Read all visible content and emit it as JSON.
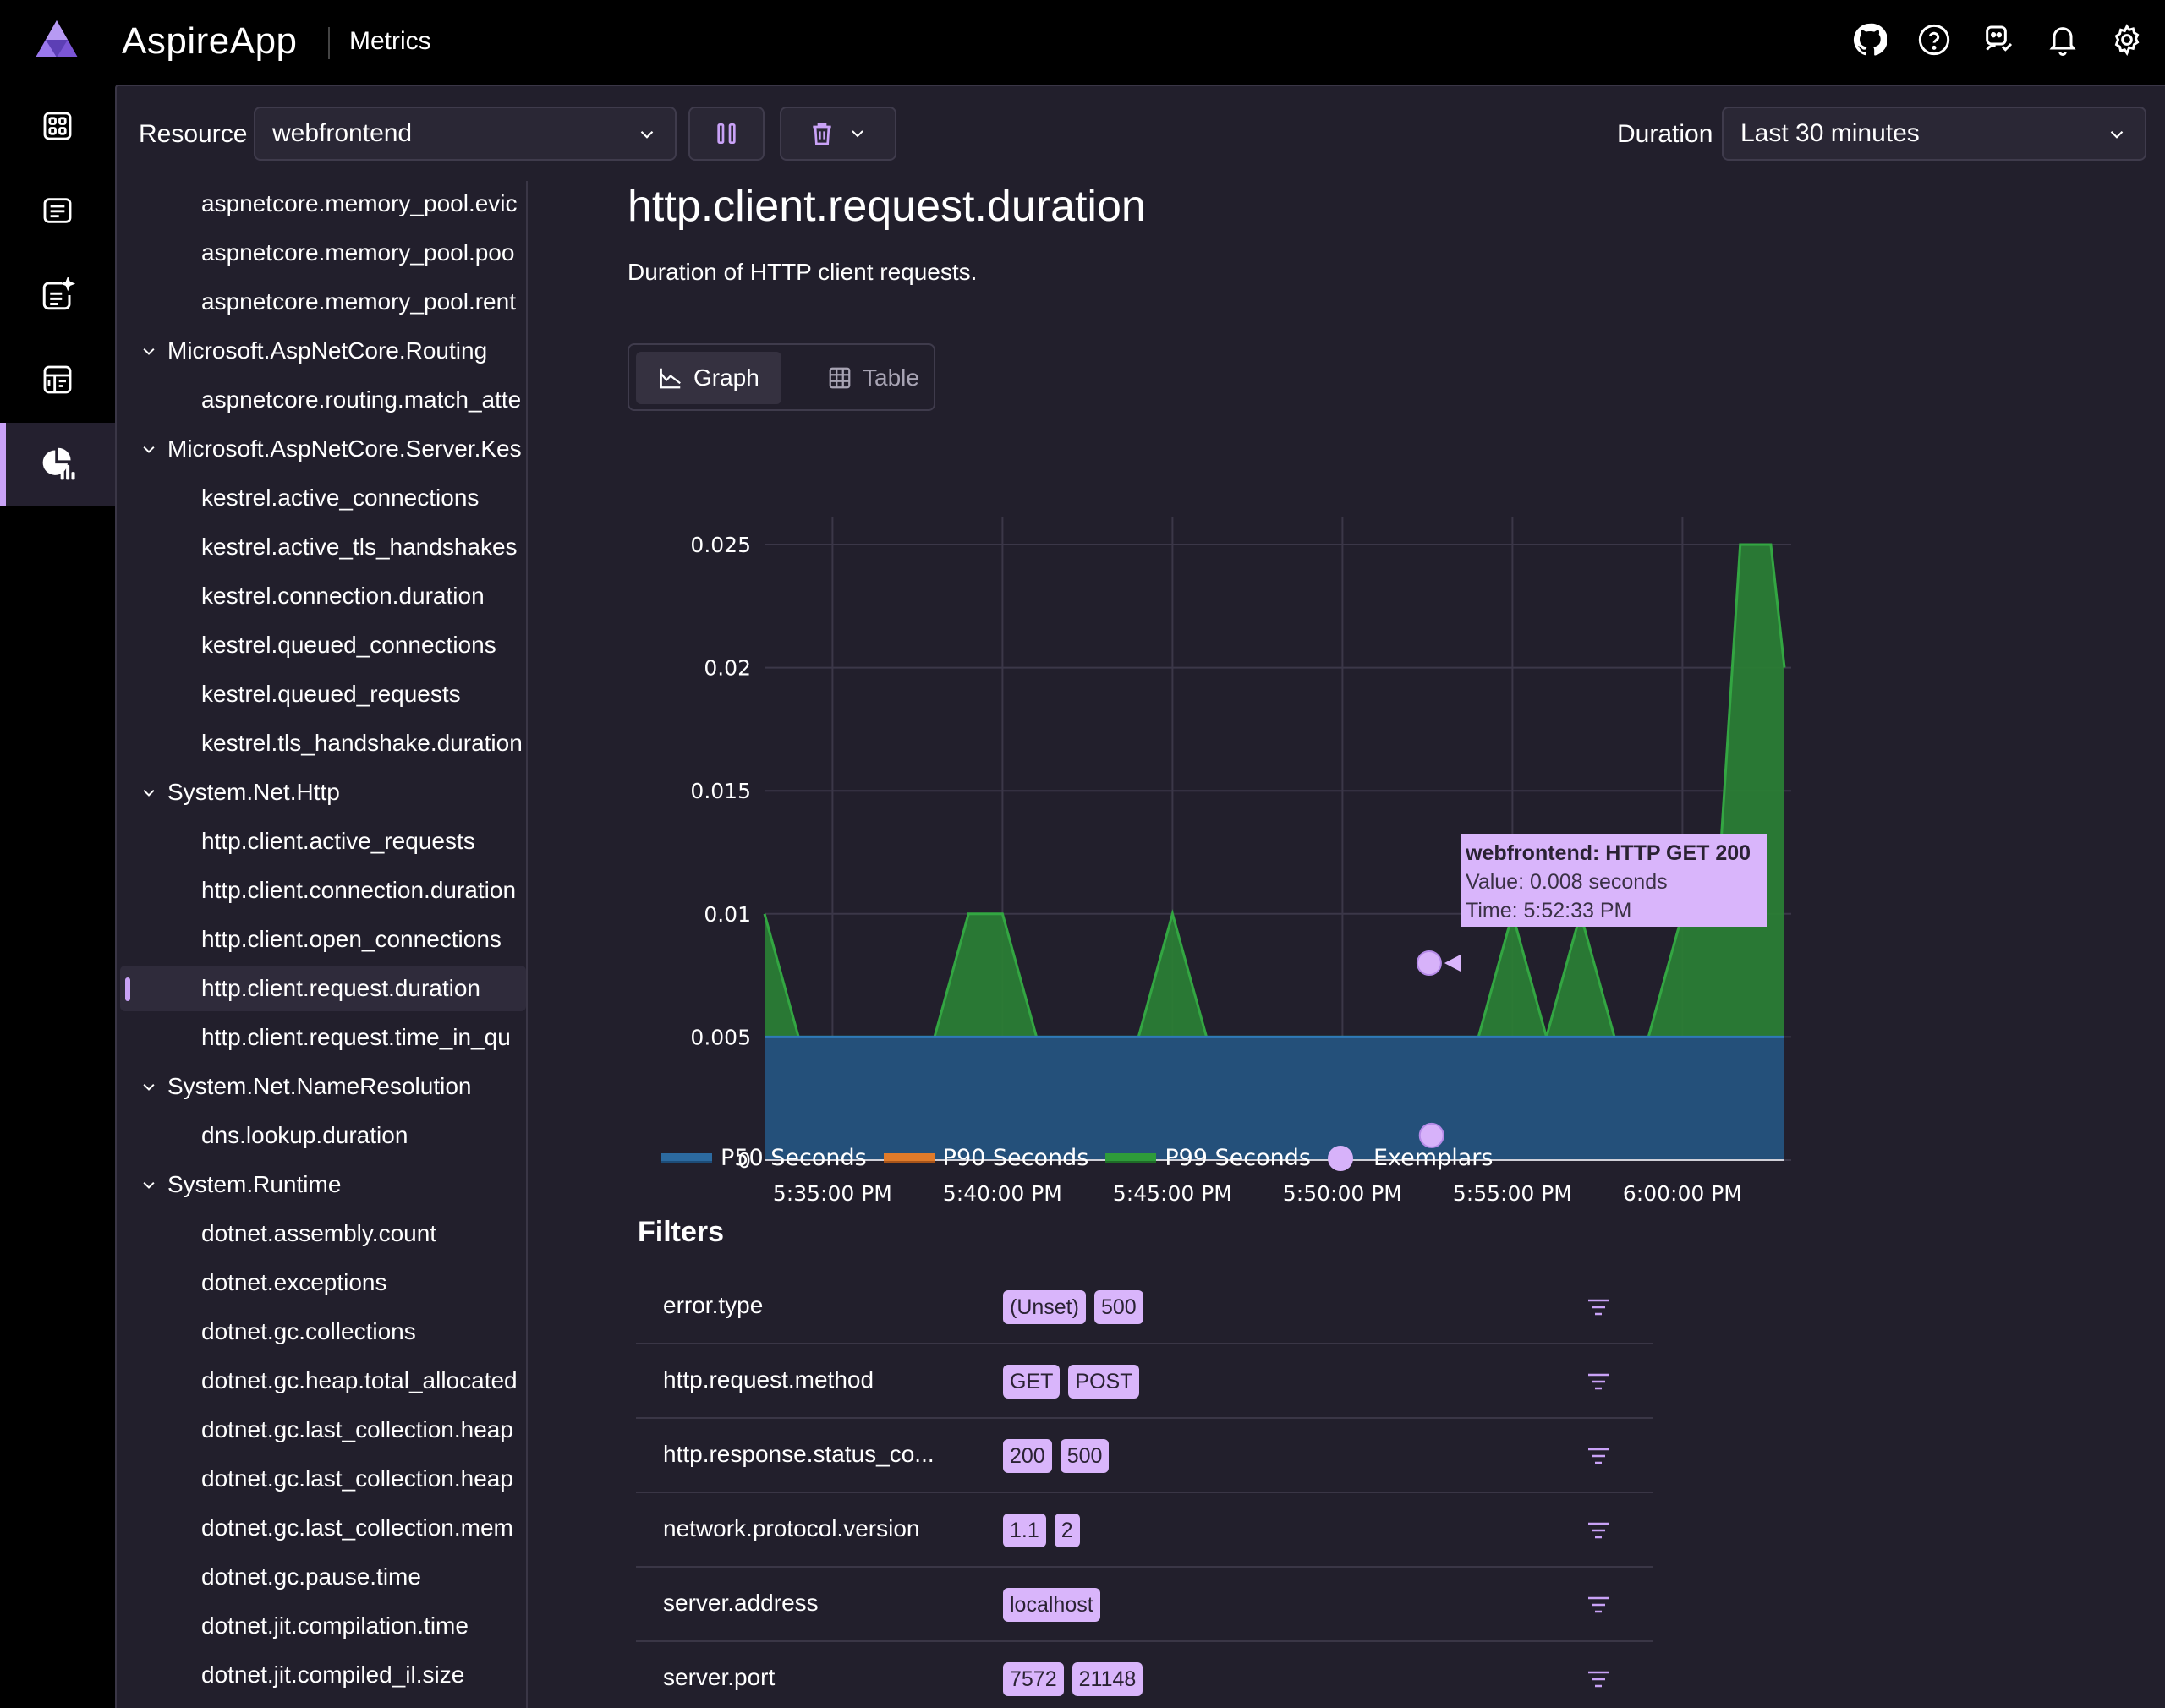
{
  "header": {
    "app_title": "AspireApp",
    "page_name": "Metrics",
    "icons": [
      "github-icon",
      "help-icon",
      "support-icon",
      "notifications-icon",
      "settings-icon"
    ]
  },
  "nav": {
    "items": [
      {
        "name": "resources",
        "icon": "resources-icon"
      },
      {
        "name": "console-logs",
        "icon": "console-logs-icon"
      },
      {
        "name": "structured-logs",
        "icon": "structured-logs-icon"
      },
      {
        "name": "traces",
        "icon": "traces-icon"
      },
      {
        "name": "metrics",
        "icon": "metrics-icon",
        "active": true
      }
    ]
  },
  "toolbar": {
    "resource_label": "Resource",
    "resource_value": "webfrontend",
    "duration_label": "Duration",
    "duration_value": "Last 30 minutes"
  },
  "tree": {
    "rows": [
      {
        "type": "leaf",
        "label": "aspnetcore.memory_pool.evic"
      },
      {
        "type": "leaf",
        "label": "aspnetcore.memory_pool.poo"
      },
      {
        "type": "leaf",
        "label": "aspnetcore.memory_pool.rent"
      },
      {
        "type": "group",
        "label": "Microsoft.AspNetCore.Routing"
      },
      {
        "type": "leaf",
        "label": "aspnetcore.routing.match_atte"
      },
      {
        "type": "group",
        "label": "Microsoft.AspNetCore.Server.Kes"
      },
      {
        "type": "leaf",
        "label": "kestrel.active_connections"
      },
      {
        "type": "leaf",
        "label": "kestrel.active_tls_handshakes"
      },
      {
        "type": "leaf",
        "label": "kestrel.connection.duration"
      },
      {
        "type": "leaf",
        "label": "kestrel.queued_connections"
      },
      {
        "type": "leaf",
        "label": "kestrel.queued_requests"
      },
      {
        "type": "leaf",
        "label": "kestrel.tls_handshake.duration"
      },
      {
        "type": "group",
        "label": "System.Net.Http"
      },
      {
        "type": "leaf",
        "label": "http.client.active_requests"
      },
      {
        "type": "leaf",
        "label": "http.client.connection.duration"
      },
      {
        "type": "leaf",
        "label": "http.client.open_connections"
      },
      {
        "type": "leaf",
        "label": "http.client.request.duration",
        "selected": true
      },
      {
        "type": "leaf",
        "label": "http.client.request.time_in_qu"
      },
      {
        "type": "group",
        "label": "System.Net.NameResolution"
      },
      {
        "type": "leaf",
        "label": "dns.lookup.duration"
      },
      {
        "type": "group",
        "label": "System.Runtime"
      },
      {
        "type": "leaf",
        "label": "dotnet.assembly.count"
      },
      {
        "type": "leaf",
        "label": "dotnet.exceptions"
      },
      {
        "type": "leaf",
        "label": "dotnet.gc.collections"
      },
      {
        "type": "leaf",
        "label": "dotnet.gc.heap.total_allocated"
      },
      {
        "type": "leaf",
        "label": "dotnet.gc.last_collection.heap"
      },
      {
        "type": "leaf",
        "label": "dotnet.gc.last_collection.heap"
      },
      {
        "type": "leaf",
        "label": "dotnet.gc.last_collection.mem"
      },
      {
        "type": "leaf",
        "label": "dotnet.gc.pause.time"
      },
      {
        "type": "leaf",
        "label": "dotnet.jit.compilation.time"
      },
      {
        "type": "leaf",
        "label": "dotnet.jit.compiled_il.size"
      }
    ]
  },
  "content": {
    "title": "http.client.request.duration",
    "description": "Duration of HTTP client requests.",
    "view_graph": "Graph",
    "view_table": "Table"
  },
  "chart_data": {
    "type": "area",
    "x": [
      "5:35:00 PM",
      "5:40:00 PM",
      "5:45:00 PM",
      "5:50:00 PM",
      "5:55:00 PM",
      "6:00:00 PM"
    ],
    "ylim": [
      0,
      0.025
    ],
    "yticks": [
      "0",
      "0.005",
      "0.01",
      "0.015",
      "0.02",
      "0.025"
    ],
    "grid": true,
    "series": [
      {
        "name": "P50 Seconds",
        "color": "#2c6aa0",
        "points": [
          [
            0,
            0.005
          ],
          [
            30,
            0.005
          ]
        ]
      },
      {
        "name": "P90 Seconds",
        "color": "#e07b2a",
        "points": [
          [
            0,
            0.005
          ],
          [
            30,
            0.005
          ]
        ]
      },
      {
        "name": "P99 Seconds",
        "color": "#2e9b3a",
        "points": [
          [
            0,
            0.01
          ],
          [
            1,
            0.005
          ],
          [
            5,
            0.005
          ],
          [
            6,
            0.01
          ],
          [
            7,
            0.01
          ],
          [
            8,
            0.005
          ],
          [
            11,
            0.005
          ],
          [
            12,
            0.01
          ],
          [
            13,
            0.005
          ],
          [
            21,
            0.005
          ],
          [
            22,
            0.01
          ],
          [
            23,
            0.005
          ],
          [
            24,
            0.01
          ],
          [
            25,
            0.005
          ],
          [
            26,
            0.005
          ],
          [
            27,
            0.01
          ],
          [
            28,
            0.01
          ],
          [
            28.7,
            0.025
          ],
          [
            29.6,
            0.025
          ],
          [
            30,
            0.02
          ]
        ]
      }
    ],
    "x_minutes_start": "5:33:00 PM",
    "exemplars": [
      {
        "series": "webfrontend: HTTP GET 200",
        "value": 0.008,
        "time": "5:52:33 PM"
      },
      {
        "series": "webfrontend: HTTP GET 200",
        "value": 0.001,
        "time": "5:52:33 PM"
      }
    ],
    "legend": [
      "P50 Seconds",
      "P90 Seconds",
      "P99 Seconds",
      "Exemplars"
    ],
    "legend_placement": "bottom"
  },
  "tooltip": {
    "title": "webfrontend: HTTP GET 200",
    "value_line": "Value: 0.008 seconds",
    "time_line": "Time: 5:52:33 PM"
  },
  "filters": {
    "title": "Filters",
    "rows": [
      {
        "name": "error.type",
        "values": [
          "(Unset)",
          "500"
        ]
      },
      {
        "name": "http.request.method",
        "values": [
          "GET",
          "POST"
        ]
      },
      {
        "name": "http.response.status_co...",
        "values": [
          "200",
          "500"
        ]
      },
      {
        "name": "network.protocol.version",
        "values": [
          "1.1",
          "2"
        ]
      },
      {
        "name": "server.address",
        "values": [
          "localhost"
        ]
      },
      {
        "name": "server.port",
        "values": [
          "7572",
          "21148"
        ]
      }
    ]
  }
}
